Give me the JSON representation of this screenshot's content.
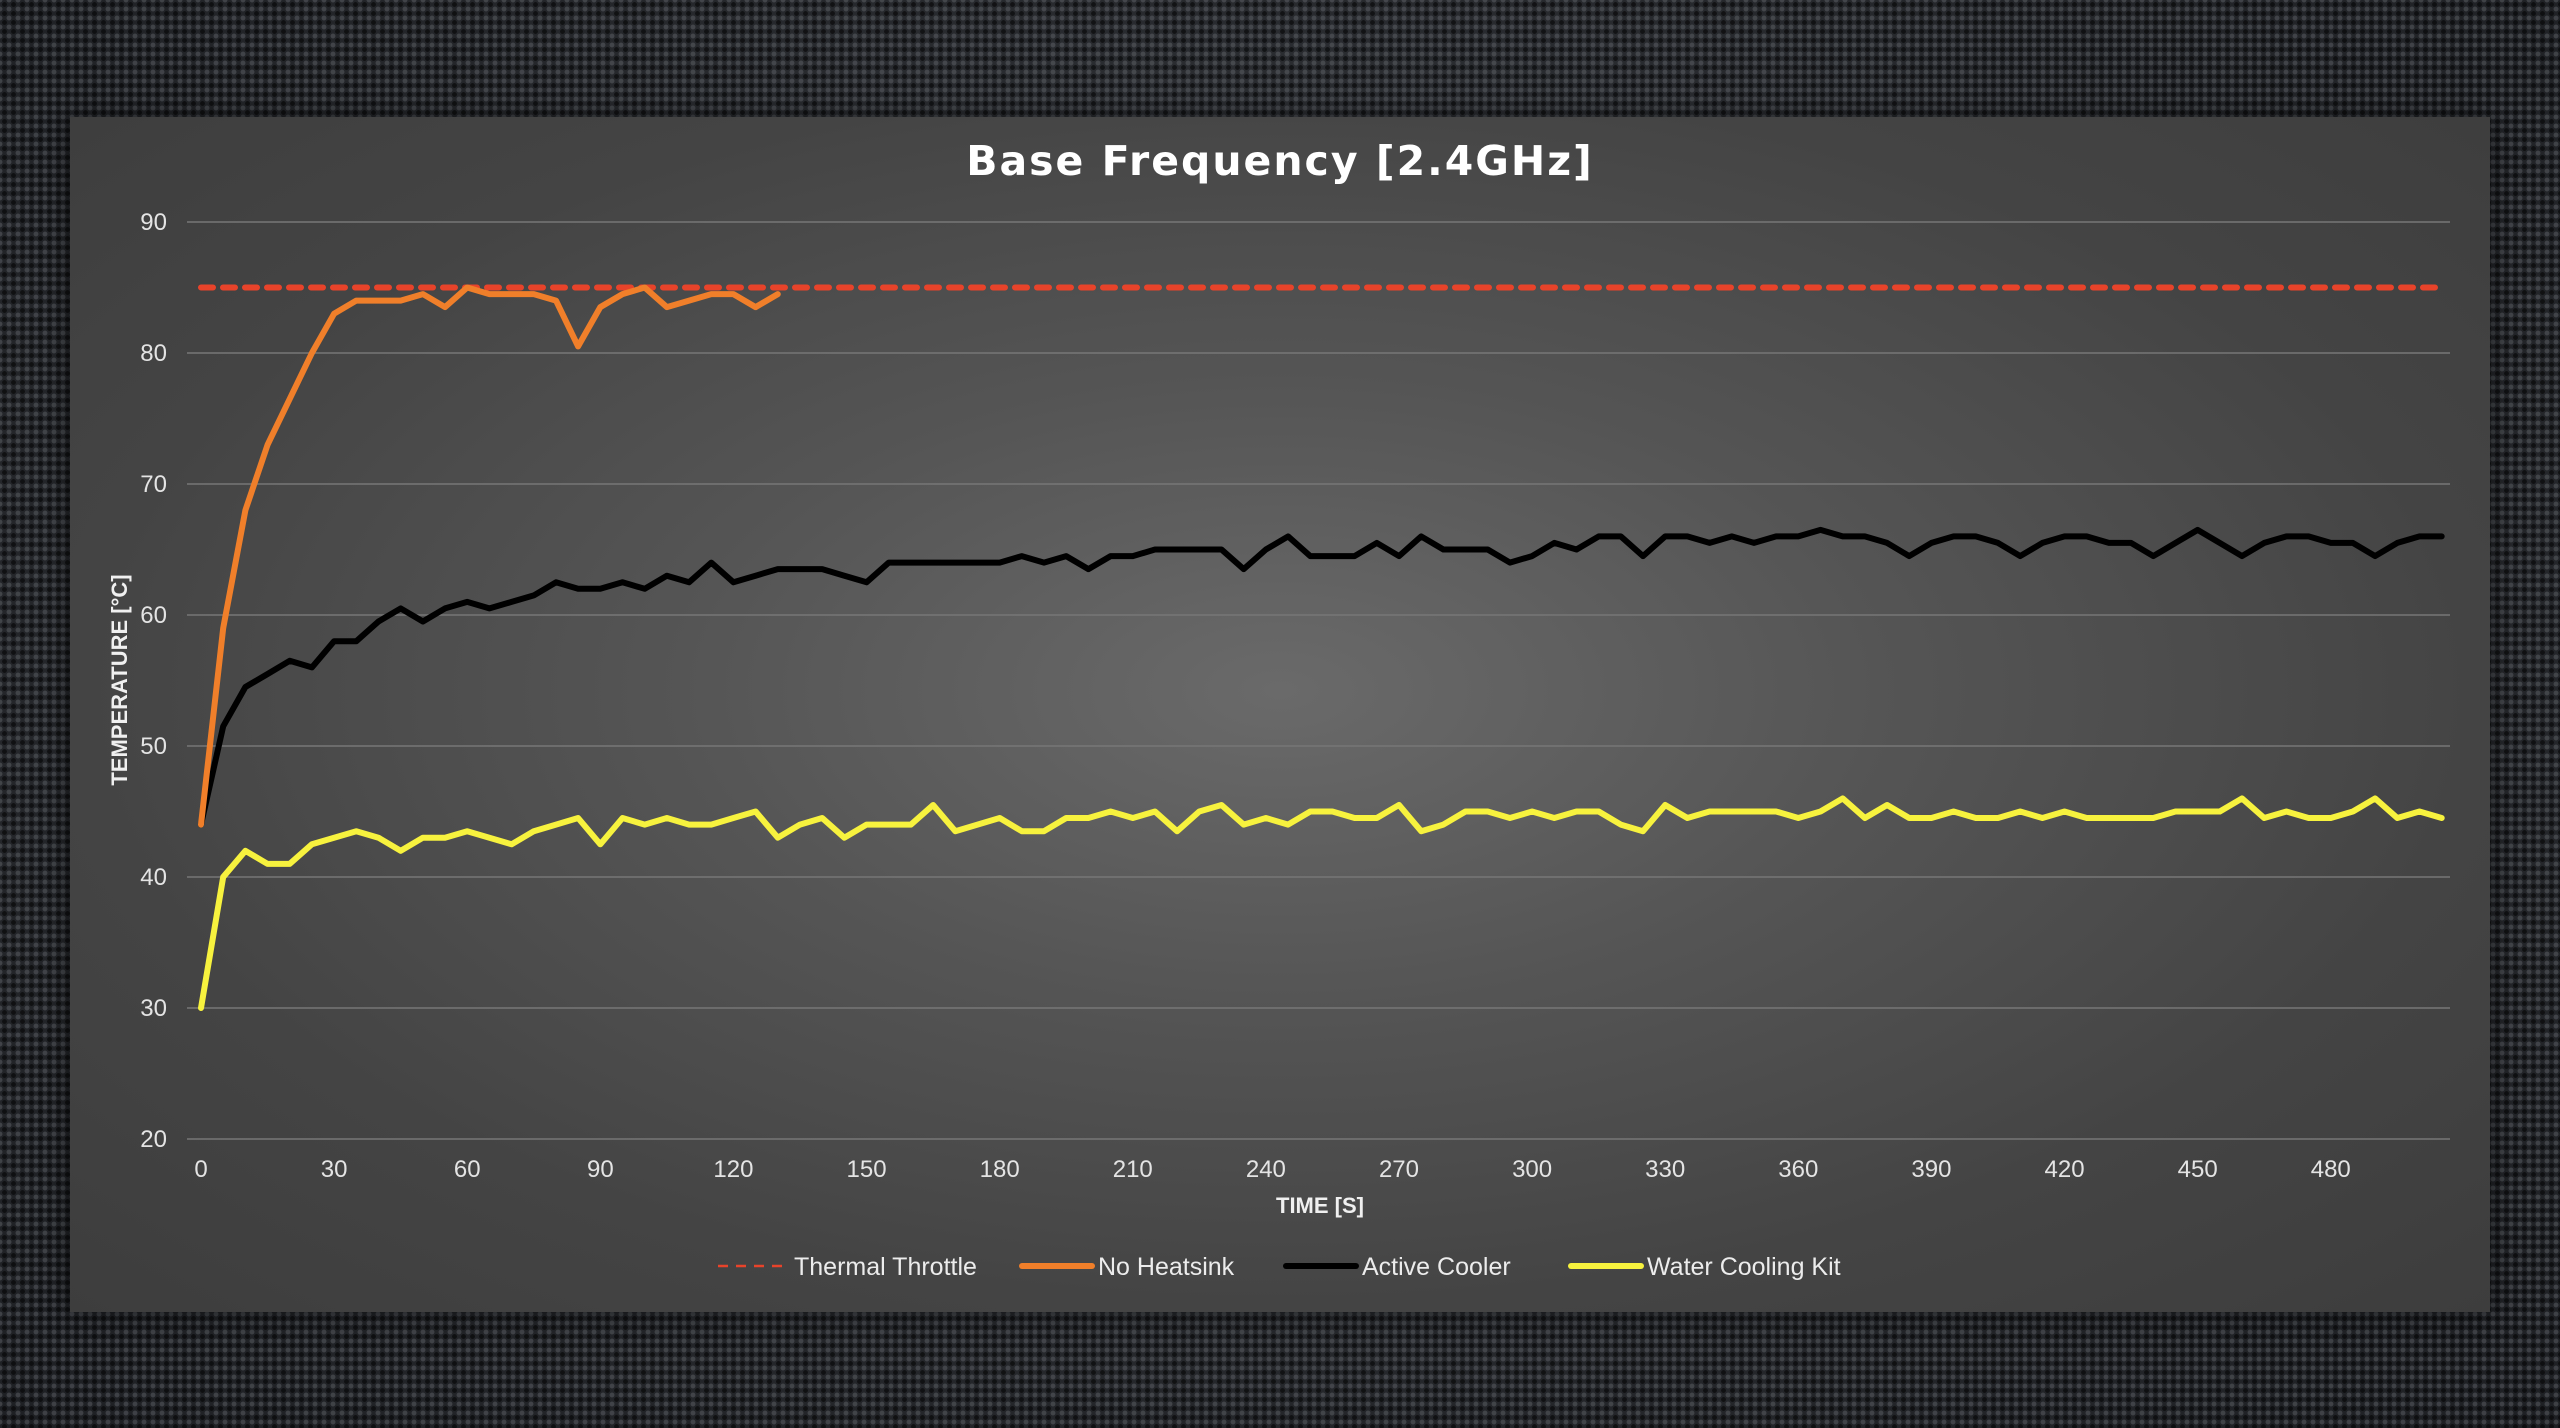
{
  "chart_data": {
    "type": "line",
    "title": "Base Frequency [2.4GHz]",
    "xlabel": "TIME [S]",
    "ylabel": "TEMPERATURE [°C]",
    "xlim": [
      0,
      505
    ],
    "ylim": [
      20,
      90
    ],
    "xticks": [
      0,
      30,
      60,
      90,
      120,
      150,
      180,
      210,
      240,
      270,
      300,
      330,
      360,
      390,
      420,
      450,
      480
    ],
    "yticks": [
      20,
      30,
      40,
      50,
      60,
      70,
      80,
      90
    ],
    "grid": "horizontal",
    "legend_position": "bottom",
    "series": [
      {
        "name": "Thermal Throttle",
        "color": "#e8432a",
        "style": "dashed",
        "x": [
          0,
          505
        ],
        "y": [
          85,
          85
        ]
      },
      {
        "name": "No Heatsink",
        "color": "#f07f2a",
        "style": "solid",
        "x": [
          0,
          5,
          10,
          15,
          20,
          25,
          30,
          35,
          40,
          45,
          50,
          55,
          60,
          65,
          70,
          75,
          80,
          85,
          90,
          95,
          100,
          105,
          110,
          115,
          120,
          125,
          130
        ],
        "y": [
          44,
          59,
          68,
          73,
          76.5,
          80,
          83,
          84,
          84,
          84,
          84.5,
          83.5,
          85,
          84.5,
          84.5,
          84.5,
          84,
          80.5,
          83.5,
          84.5,
          85,
          83.5,
          84,
          84.5,
          84.5,
          83.5,
          84.5
        ]
      },
      {
        "name": "Active Cooler",
        "color": "#000000",
        "style": "solid",
        "x": [
          0,
          5,
          10,
          15,
          20,
          25,
          30,
          35,
          40,
          45,
          50,
          55,
          60,
          65,
          70,
          75,
          80,
          85,
          90,
          95,
          100,
          105,
          110,
          115,
          120,
          125,
          130,
          135,
          140,
          145,
          150,
          155,
          160,
          165,
          170,
          175,
          180,
          185,
          190,
          195,
          200,
          205,
          210,
          215,
          220,
          225,
          230,
          235,
          240,
          245,
          250,
          255,
          260,
          265,
          270,
          275,
          280,
          285,
          290,
          295,
          300,
          305,
          310,
          315,
          320,
          325,
          330,
          335,
          340,
          345,
          350,
          355,
          360,
          365,
          370,
          375,
          380,
          385,
          390,
          395,
          400,
          405,
          410,
          415,
          420,
          425,
          430,
          435,
          440,
          445,
          450,
          455,
          460,
          465,
          470,
          475,
          480,
          485,
          490,
          495,
          500,
          505
        ],
        "y": [
          44,
          51.5,
          54.5,
          55.5,
          56.5,
          56,
          58,
          58,
          59.5,
          60.5,
          59.5,
          60.5,
          61,
          60.5,
          61,
          61.5,
          62.5,
          62,
          62,
          62.5,
          62,
          63,
          62.5,
          64,
          62.5,
          63,
          63.5,
          63.5,
          63.5,
          63,
          62.5,
          64,
          64,
          64,
          64,
          64,
          64,
          64.5,
          64,
          64.5,
          63.5,
          64.5,
          64.5,
          65,
          65,
          65,
          65,
          63.5,
          65,
          66,
          64.5,
          64.5,
          64.5,
          65.5,
          64.5,
          66,
          65,
          65,
          65,
          64,
          64.5,
          65.5,
          65,
          66,
          66,
          64.5,
          66,
          66,
          65.5,
          66,
          65.5,
          66,
          66,
          66.5,
          66,
          66,
          65.5,
          64.5,
          65.5,
          66,
          66,
          65.5,
          64.5,
          65.5,
          66,
          66,
          65.5,
          65.5,
          64.5,
          65.5,
          66.5,
          65.5,
          64.5,
          65.5,
          66,
          66,
          65.5,
          65.5,
          64.5,
          65.5,
          66,
          66
        ]
      },
      {
        "name": "Water Cooling Kit",
        "color": "#f7f23e",
        "style": "solid",
        "x": [
          0,
          5,
          10,
          15,
          20,
          25,
          30,
          35,
          40,
          45,
          50,
          55,
          60,
          65,
          70,
          75,
          80,
          85,
          90,
          95,
          100,
          105,
          110,
          115,
          120,
          125,
          130,
          135,
          140,
          145,
          150,
          155,
          160,
          165,
          170,
          175,
          180,
          185,
          190,
          195,
          200,
          205,
          210,
          215,
          220,
          225,
          230,
          235,
          240,
          245,
          250,
          255,
          260,
          265,
          270,
          275,
          280,
          285,
          290,
          295,
          300,
          305,
          310,
          315,
          320,
          325,
          330,
          335,
          340,
          345,
          350,
          355,
          360,
          365,
          370,
          375,
          380,
          385,
          390,
          395,
          400,
          405,
          410,
          415,
          420,
          425,
          430,
          435,
          440,
          445,
          450,
          455,
          460,
          465,
          470,
          475,
          480,
          485,
          490,
          495,
          500,
          505
        ],
        "y": [
          30,
          40,
          42,
          41,
          41,
          42.5,
          43,
          43.5,
          43,
          42,
          43,
          43,
          43.5,
          43,
          42.5,
          43.5,
          44,
          44.5,
          42.5,
          44.5,
          44,
          44.5,
          44,
          44,
          44.5,
          45,
          43,
          44,
          44.5,
          43,
          44,
          44,
          44,
          45.5,
          43.5,
          44,
          44.5,
          43.5,
          43.5,
          44.5,
          44.5,
          45,
          44.5,
          45,
          43.5,
          45,
          45.5,
          44,
          44.5,
          44,
          45,
          45,
          44.5,
          44.5,
          45.5,
          43.5,
          44,
          45,
          45,
          44.5,
          45,
          44.5,
          45,
          45,
          44,
          43.5,
          45.5,
          44.5,
          45,
          45,
          45,
          45,
          44.5,
          45,
          46,
          44.5,
          45.5,
          44.5,
          44.5,
          45,
          44.5,
          44.5,
          45,
          44.5,
          45,
          44.5,
          44.5,
          44.5,
          44.5,
          45,
          45,
          45,
          46,
          44.5,
          45,
          44.5,
          44.5,
          45,
          46,
          44.5,
          45,
          44.5
        ]
      }
    ]
  }
}
